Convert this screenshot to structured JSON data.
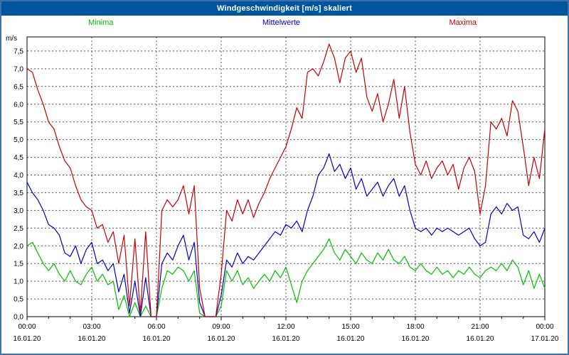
{
  "header": {
    "title": "Windgeschwindigkeit [m/s] skaliert"
  },
  "frame": {
    "border_color": "#3f6fae",
    "titlebar_color": "#00569d"
  },
  "chart_data": {
    "type": "line",
    "title": "Windgeschwindigkeit [m/s] skaliert",
    "xlabel": "",
    "ylabel": "m/s",
    "ylim": [
      0,
      7.9
    ],
    "xlim_hours": [
      0,
      24
    ],
    "x_interval_minutes": 15,
    "grid": "dashed",
    "legend_position": "top",
    "yticks": [
      {
        "value": 0.0,
        "label": "0,0"
      },
      {
        "value": 0.5,
        "label": "0,5"
      },
      {
        "value": 1.0,
        "label": "1,0"
      },
      {
        "value": 1.5,
        "label": "1,5"
      },
      {
        "value": 2.0,
        "label": "2,0"
      },
      {
        "value": 2.5,
        "label": "2,5"
      },
      {
        "value": 3.0,
        "label": "3,0"
      },
      {
        "value": 3.5,
        "label": "3,5"
      },
      {
        "value": 4.0,
        "label": "4,0"
      },
      {
        "value": 4.5,
        "label": "4,5"
      },
      {
        "value": 5.0,
        "label": "5,0"
      },
      {
        "value": 5.5,
        "label": "5,5"
      },
      {
        "value": 6.0,
        "label": "6,0"
      },
      {
        "value": 6.5,
        "label": "6,5"
      },
      {
        "value": 7.0,
        "label": "7,0"
      },
      {
        "value": 7.5,
        "label": "7,5"
      }
    ],
    "xticks": [
      {
        "hour": 0,
        "time": "00:00",
        "date": "16.01.20"
      },
      {
        "hour": 3,
        "time": "03:00",
        "date": "16.01.20"
      },
      {
        "hour": 6,
        "time": "06:00",
        "date": "16.01.20"
      },
      {
        "hour": 9,
        "time": "09:00",
        "date": "16.01.20"
      },
      {
        "hour": 12,
        "time": "12:00",
        "date": "16.01.20"
      },
      {
        "hour": 15,
        "time": "15:00",
        "date": "16.01.20"
      },
      {
        "hour": 18,
        "time": "18:00",
        "date": "16.01.20"
      },
      {
        "hour": 21,
        "time": "21:00",
        "date": "16.01.20"
      },
      {
        "hour": 24,
        "time": "00:00",
        "date": "17.01.20"
      }
    ],
    "series": [
      {
        "name": "Minima",
        "color": "#00c000",
        "values": [
          2.0,
          2.1,
          1.8,
          1.5,
          1.3,
          1.5,
          1.2,
          1.0,
          1.3,
          1.0,
          0.9,
          1.2,
          1.4,
          1.0,
          1.2,
          0.9,
          1.0,
          0.2,
          0.6,
          0.0,
          0.4,
          0.0,
          0.3,
          0.0,
          0.0,
          0.8,
          1.3,
          1.2,
          1.4,
          1.3,
          1.0,
          1.3,
          0.1,
          0.0,
          0.0,
          0.0,
          0.3,
          1.3,
          1.0,
          1.3,
          0.9,
          1.1,
          0.8,
          1.0,
          1.2,
          1.0,
          1.3,
          1.1,
          1.4,
          0.9,
          0.4,
          1.0,
          1.3,
          1.5,
          1.7,
          1.9,
          2.2,
          1.8,
          1.6,
          1.9,
          1.7,
          1.5,
          1.8,
          1.6,
          1.5,
          1.8,
          1.6,
          1.9,
          1.6,
          1.5,
          1.7,
          1.4,
          1.3,
          1.5,
          1.3,
          1.2,
          1.4,
          1.2,
          1.3,
          1.1,
          1.3,
          1.2,
          1.4,
          1.2,
          1.1,
          1.3,
          1.4,
          1.3,
          1.5,
          1.3,
          1.6,
          1.4,
          0.9,
          1.3,
          0.8,
          1.2,
          0.8
        ]
      },
      {
        "name": "Mittelwerte",
        "color": "#0000c8",
        "values": [
          3.8,
          3.5,
          3.3,
          3.0,
          2.6,
          2.5,
          2.3,
          1.8,
          1.7,
          2.0,
          1.5,
          1.9,
          2.1,
          1.5,
          1.6,
          1.3,
          1.5,
          0.7,
          1.2,
          0.1,
          1.0,
          0.0,
          1.1,
          0.0,
          0.0,
          1.5,
          1.8,
          1.6,
          2.0,
          2.3,
          1.6,
          2.1,
          0.4,
          0.0,
          0.0,
          0.0,
          0.6,
          1.6,
          1.4,
          1.8,
          1.5,
          1.7,
          1.6,
          1.8,
          2.0,
          2.2,
          2.4,
          2.3,
          2.6,
          2.5,
          2.7,
          2.4,
          3.0,
          3.4,
          4.0,
          4.2,
          4.6,
          4.1,
          4.3,
          3.9,
          4.2,
          3.6,
          3.9,
          3.4,
          3.6,
          3.8,
          3.4,
          3.7,
          3.9,
          3.4,
          3.7,
          3.0,
          2.5,
          2.4,
          2.5,
          2.3,
          2.5,
          2.4,
          2.5,
          2.4,
          2.3,
          2.4,
          2.5,
          2.2,
          2.0,
          2.1,
          2.9,
          3.1,
          2.9,
          3.2,
          3.0,
          3.1,
          2.3,
          2.2,
          2.4,
          2.1,
          2.5
        ]
      },
      {
        "name": "Maxima",
        "color": "#c80000",
        "values": [
          7.0,
          6.9,
          6.4,
          6.0,
          5.5,
          5.3,
          4.8,
          4.4,
          4.2,
          3.7,
          3.3,
          3.1,
          3.0,
          2.5,
          2.6,
          2.1,
          2.4,
          1.5,
          2.3,
          0.3,
          2.2,
          0.1,
          2.4,
          0.0,
          0.0,
          3.0,
          3.3,
          3.1,
          3.3,
          3.7,
          2.9,
          3.7,
          0.8,
          0.0,
          0.0,
          0.0,
          1.2,
          3.0,
          2.7,
          3.3,
          2.9,
          3.3,
          2.8,
          3.2,
          3.5,
          3.9,
          4.2,
          4.5,
          4.8,
          5.3,
          5.9,
          5.6,
          6.9,
          7.0,
          6.8,
          7.2,
          7.7,
          7.3,
          6.6,
          7.3,
          7.5,
          6.9,
          7.3,
          6.2,
          5.8,
          6.3,
          5.5,
          6.0,
          6.7,
          5.6,
          6.5,
          5.2,
          4.3,
          4.0,
          4.4,
          3.9,
          4.2,
          4.4,
          4.0,
          4.3,
          3.6,
          4.2,
          4.5,
          4.1,
          2.9,
          3.7,
          5.5,
          5.3,
          5.6,
          5.1,
          6.1,
          5.8,
          4.8,
          3.7,
          4.5,
          3.9,
          5.3
        ]
      }
    ]
  }
}
